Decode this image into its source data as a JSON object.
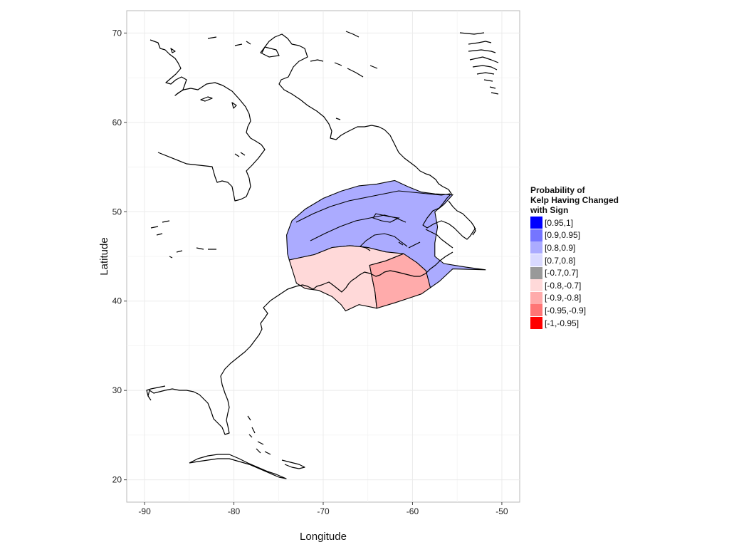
{
  "chart_data": {
    "type": "map",
    "xlabel": "Longitude",
    "ylabel": "Latitude",
    "xlim": [
      -92,
      -48
    ],
    "ylim": [
      17.5,
      72.5
    ],
    "x_ticks": [
      "-90",
      "-80",
      "-70",
      "-60",
      "-50"
    ],
    "y_ticks": [
      "20",
      "30",
      "40",
      "50",
      "60",
      "70"
    ],
    "grid": "on",
    "legend": {
      "position": "right",
      "title_lines": [
        "Probability of",
        "Kelp Having Changed",
        "with Sign"
      ],
      "items": [
        {
          "label": "[0.95,1]",
          "color": "#0000ff"
        },
        {
          "label": "[0.9,0.95]",
          "color": "#7575ff"
        },
        {
          "label": "[0.8,0.9]",
          "color": "#ababff"
        },
        {
          "label": "[0.7,0.8]",
          "color": "#d9d9ff"
        },
        {
          "label": "[-0.7,0.7]",
          "color": "#999999"
        },
        {
          "label": "[-0.8,-0.7]",
          "color": "#ffd9d9"
        },
        {
          "label": "[-0.9,-0.8]",
          "color": "#ffabab"
        },
        {
          "label": "[-0.95,-0.9]",
          "color": "#ff7575"
        },
        {
          "label": "[-1,-0.95]",
          "color": "#ff0000"
        }
      ]
    },
    "regions": [
      {
        "name": "gulf-of-maine-region",
        "category": "[0.8,0.9]",
        "color": "#ababff",
        "lonlat": [
          [
            -73.8,
            44.6
          ],
          [
            -74.0,
            45.3
          ],
          [
            -74.1,
            47.4
          ],
          [
            -73.5,
            49.0
          ],
          [
            -72.0,
            50.3
          ],
          [
            -70.0,
            51.5
          ],
          [
            -68.0,
            52.3
          ],
          [
            -66.0,
            52.9
          ],
          [
            -64.0,
            53.1
          ],
          [
            -62.0,
            53.5
          ],
          [
            -60.5,
            52.8
          ],
          [
            -59.0,
            52.2
          ],
          [
            -57.5,
            52.0
          ],
          [
            -55.5,
            51.9
          ],
          [
            -56.5,
            50.8
          ],
          [
            -57.5,
            50.0
          ],
          [
            -57.2,
            48.3
          ],
          [
            -57.5,
            46.5
          ],
          [
            -57.5,
            45.0
          ],
          [
            -56.5,
            44.2
          ],
          [
            -54.0,
            43.8
          ],
          [
            -51.8,
            43.5
          ],
          [
            -55.5,
            43.6
          ],
          [
            -57.0,
            42.2
          ],
          [
            -58.0,
            41.5
          ],
          [
            -59.0,
            43.5
          ],
          [
            -61.0,
            44.5
          ],
          [
            -63.0,
            45.5
          ],
          [
            -65.0,
            46.0
          ],
          [
            -67.0,
            46.2
          ],
          [
            -69.0,
            46.0
          ],
          [
            -71.0,
            45.2
          ],
          [
            -73.8,
            44.6
          ]
        ]
      },
      {
        "name": "mid-atlantic-outer-region",
        "category": "[-0.8,-0.7]",
        "color": "#ffd9d9",
        "lonlat": [
          [
            -73.8,
            44.6
          ],
          [
            -71.0,
            45.2
          ],
          [
            -69.0,
            46.0
          ],
          [
            -67.0,
            46.2
          ],
          [
            -65.0,
            46.0
          ],
          [
            -63.0,
            45.5
          ],
          [
            -61.0,
            45.3
          ],
          [
            -63.0,
            44.5
          ],
          [
            -64.8,
            44.0
          ],
          [
            -64.5,
            42.5
          ],
          [
            -64.2,
            41.0
          ],
          [
            -64.0,
            39.2
          ],
          [
            -66.0,
            39.6
          ],
          [
            -67.5,
            38.9
          ],
          [
            -68.0,
            39.6
          ],
          [
            -69.0,
            40.5
          ],
          [
            -70.5,
            41.2
          ],
          [
            -72.0,
            41.4
          ],
          [
            -73.0,
            42.0
          ],
          [
            -73.8,
            44.6
          ]
        ]
      },
      {
        "name": "georges-bank-region",
        "category": "[-0.9,-0.8]",
        "color": "#ffabab",
        "lonlat": [
          [
            -64.0,
            39.2
          ],
          [
            -64.2,
            41.0
          ],
          [
            -64.5,
            42.5
          ],
          [
            -64.8,
            44.0
          ],
          [
            -63.0,
            44.5
          ],
          [
            -61.0,
            45.3
          ],
          [
            -59.5,
            44.3
          ],
          [
            -58.5,
            43.4
          ],
          [
            -58.0,
            41.5
          ],
          [
            -59.0,
            40.8
          ],
          [
            -60.5,
            40.3
          ],
          [
            -62.0,
            39.8
          ],
          [
            -64.0,
            39.2
          ]
        ]
      }
    ]
  }
}
